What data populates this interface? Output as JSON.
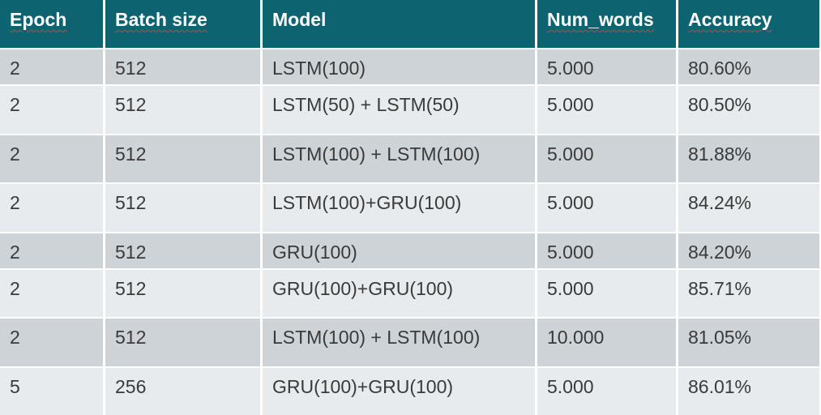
{
  "table": {
    "columns": [
      "Epoch",
      "Batch size",
      "Model",
      "Num_words",
      "Accuracy"
    ],
    "rows": [
      [
        "2",
        "512",
        "LSTM(100)",
        "5.000",
        "80.60%"
      ],
      [
        "2",
        "512",
        "LSTM(50) + LSTM(50)",
        "5.000",
        "80.50%"
      ],
      [
        "2",
        "512",
        "LSTM(100) + LSTM(100)",
        "5.000",
        "81.88%"
      ],
      [
        "2",
        "512",
        "LSTM(100)+GRU(100)",
        "5.000",
        "84.24%"
      ],
      [
        "2",
        "512",
        "GRU(100)",
        "5.000",
        "84.20%"
      ],
      [
        "2",
        "512",
        "GRU(100)+GRU(100)",
        "5.000",
        "85.71%"
      ],
      [
        "2",
        "512",
        "LSTM(100) + LSTM(100)",
        "10.000",
        "81.05%"
      ],
      [
        "5",
        "256",
        "GRU(100)+GRU(100)",
        "5.000",
        "86.01%"
      ]
    ]
  },
  "colors": {
    "header_bg": "#0e6370",
    "header_text": "#ffffff",
    "row_dark": "#cdd3d6",
    "row_light": "#e8ebee",
    "cell_text": "#3a3a3a",
    "spellcheck_underline": "#d04040"
  }
}
